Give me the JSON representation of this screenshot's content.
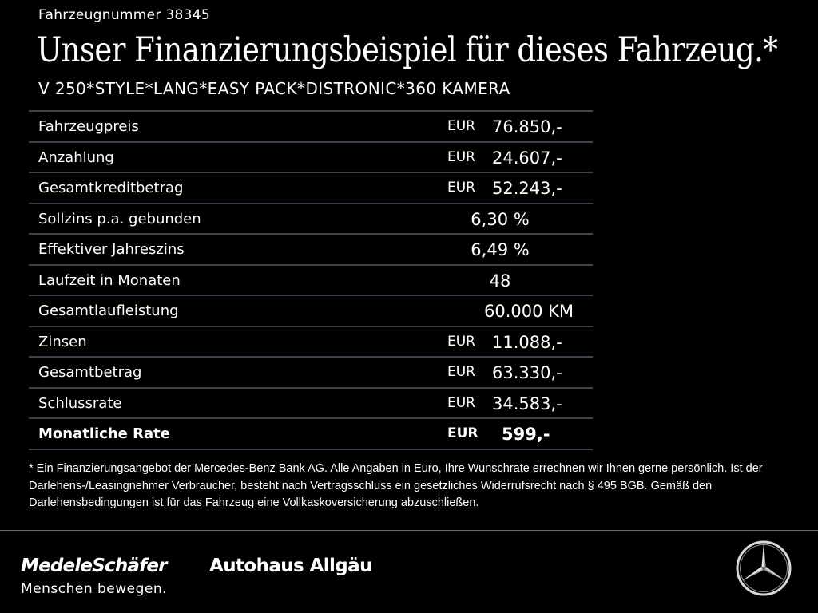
{
  "header": {
    "vehicle_number": "Fahrzeugnummer 38345",
    "headline": "Unser Finanzierungsbeispiel für dieses Fahrzeug.*",
    "model": "V 250*STYLE*LANG*EASY PACK*DISTRONIC*360 KAMERA"
  },
  "rows": [
    {
      "label": "Fahrzeugpreis",
      "currency": "EUR",
      "value": "76.850,-"
    },
    {
      "label": "Anzahlung",
      "currency": "EUR",
      "value": "24.607,-"
    },
    {
      "label": "Gesamtkreditbetrag",
      "currency": "EUR",
      "value": "52.243,-"
    },
    {
      "label": "Sollzins p.a. gebunden",
      "currency": "",
      "value": "6,30 %"
    },
    {
      "label": "Effektiver Jahreszins",
      "currency": "",
      "value": "6,49 %"
    },
    {
      "label": "Laufzeit in Monaten",
      "currency": "",
      "value": "48"
    },
    {
      "label": "Gesamtlaufleistung",
      "currency": "",
      "value": "60.000 KM"
    },
    {
      "label": "Zinsen",
      "currency": "EUR",
      "value": "11.088,-"
    },
    {
      "label": "Gesamtbetrag",
      "currency": "EUR",
      "value": "63.330,-"
    },
    {
      "label": "Schlussrate",
      "currency": "EUR",
      "value": "34.583,-"
    },
    {
      "label": "Monatliche Rate",
      "currency": "EUR",
      "value": "599,-"
    }
  ],
  "disclaimer": "* Ein Finanzierungsangebot der Mercedes-Benz Bank AG. Alle Angaben in Euro, Ihre Wunschrate errechnen wir Ihnen gerne persönlich. Ist der Darlehens-/Leasingnehmer Verbraucher, besteht nach Vertragsschluss ein gesetzliches Widerrufsrecht nach § 495 BGB. Gemäß den Darlehensbedingungen ist für das Fahrzeug eine Vollkaskoversicherung abzuschließen.",
  "footer": {
    "brand_primary": "MedeleSchäfer",
    "brand_secondary": "Autohaus Allgäu",
    "slogan": "Menschen bewegen.",
    "logo_icon": "mercedes-star-icon"
  },
  "colors": {
    "background": "#000000",
    "text": "#ffffff",
    "row_divider": "#3b4452"
  }
}
